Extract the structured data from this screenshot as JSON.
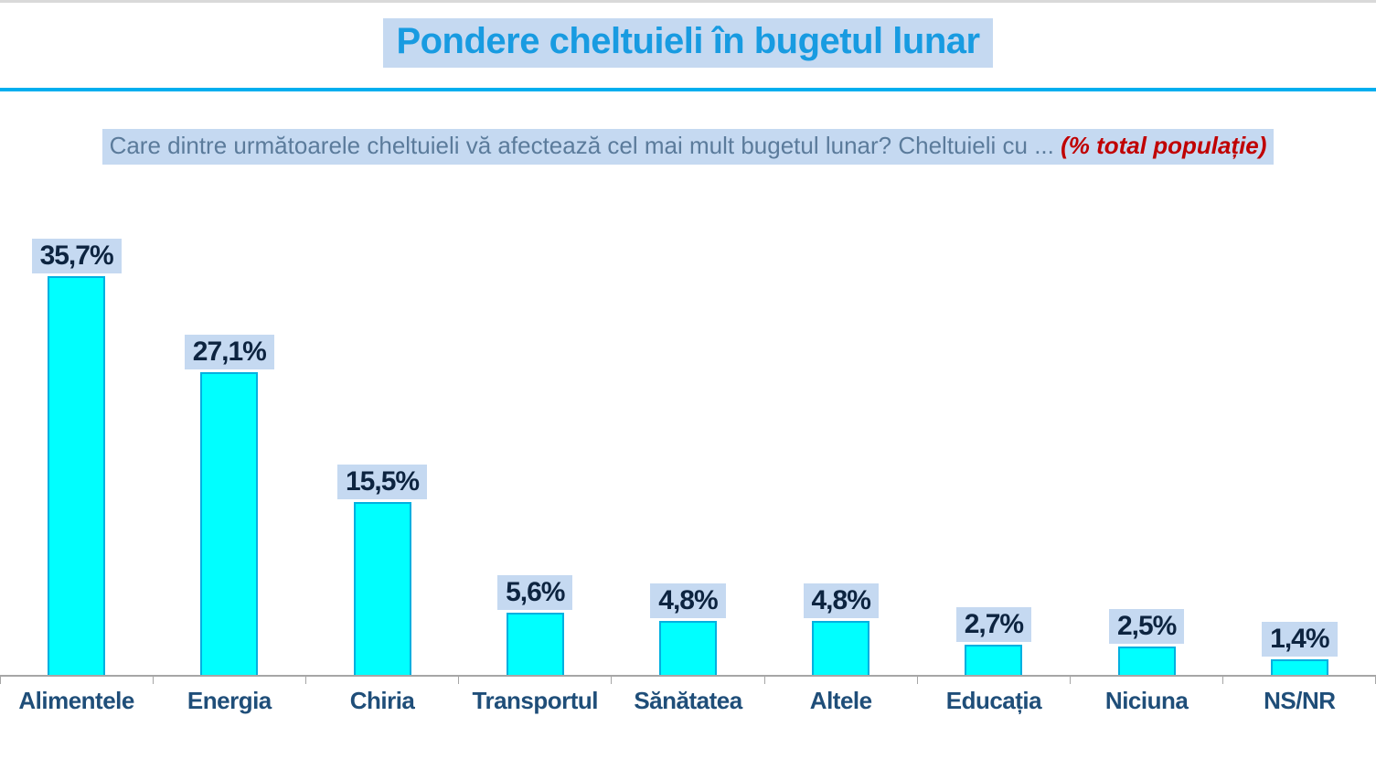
{
  "page": {
    "title": "Pondere cheltuieli în bugetul lunar",
    "subtitle_question": "Care dintre următoarele cheltuieli vă afectează cel mai mult bugetul lunar? Cheltuieli cu ... ",
    "subtitle_note": "(% total populație)"
  },
  "colors": {
    "title_blue": "#189be1",
    "highlight_bg": "#c5d9f1",
    "rule_blue": "#00aeef",
    "hairline_gray": "#d9d9d9",
    "subtitle_text": "#5b7b9b",
    "note_red": "#c00000",
    "bar_fill": "#00ffff",
    "bar_border": "#00b0e0",
    "value_text": "#0d2440",
    "category_text": "#1f4e79",
    "axis_gray": "#a6a6a6"
  },
  "chart_data": {
    "type": "bar",
    "title": "Pondere cheltuieli în bugetul lunar",
    "subtitle": "Care dintre următoarele cheltuieli vă afectează cel mai mult bugetul lunar? Cheltuieli cu ... (% total populație)",
    "categories": [
      "Alimentele",
      "Energia",
      "Chiria",
      "Transportul",
      "Sănătatea",
      "Altele",
      "Educația",
      "Niciuna",
      "NS/NR"
    ],
    "values": [
      35.7,
      27.1,
      15.5,
      5.6,
      4.8,
      4.8,
      2.7,
      2.5,
      1.4
    ],
    "value_labels": [
      "35,7%",
      "27,1%",
      "15,5%",
      "5,6%",
      "4,8%",
      "4,8%",
      "2,7%",
      "2,5%",
      "1,4%"
    ],
    "unit": "% total populație",
    "xlabel": "",
    "ylabel": "",
    "ylim": [
      0,
      40
    ],
    "grid": false,
    "legend": false,
    "decimal_separator": ","
  }
}
